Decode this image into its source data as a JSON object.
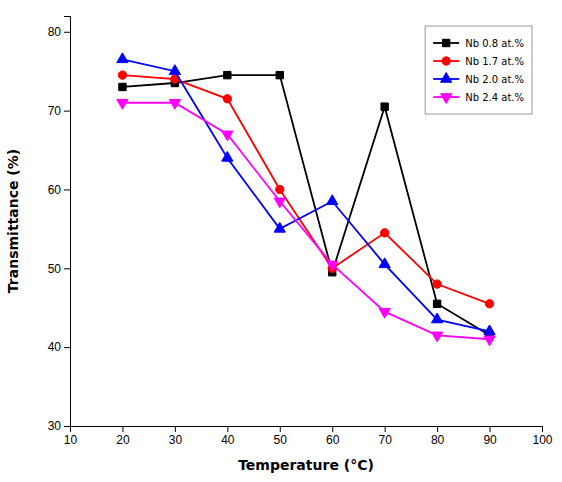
{
  "chart_data": {
    "type": "line",
    "x": [
      20,
      30,
      40,
      50,
      60,
      70,
      80,
      90
    ],
    "series": [
      {
        "name": "Nb 0.8 at.%",
        "color": "#000000",
        "marker": "square",
        "values": [
          73.0,
          73.5,
          74.5,
          74.5,
          49.5,
          70.5,
          45.5,
          41.5
        ]
      },
      {
        "name": "Nb 1.7 at.%",
        "color": "#ff0000",
        "marker": "circle",
        "values": [
          74.5,
          74.0,
          71.5,
          60.0,
          50.0,
          54.5,
          48.0,
          45.5
        ]
      },
      {
        "name": "Nb 2.0 at.%",
        "color": "#0000ff",
        "marker": "triangle-up",
        "values": [
          76.5,
          75.0,
          64.0,
          55.0,
          58.5,
          50.5,
          43.5,
          42.0
        ]
      },
      {
        "name": "Nb 2.4 at.%",
        "color": "#ff00ff",
        "marker": "triangle-down",
        "values": [
          71.0,
          71.0,
          67.0,
          58.5,
          50.5,
          44.5,
          41.5,
          41.0
        ]
      }
    ],
    "xlabel": "Temperature (°C)",
    "ylabel": "Transmittance (%)",
    "xlim": [
      10,
      100
    ],
    "ylim": [
      30,
      82
    ],
    "xticks": [
      10,
      20,
      30,
      40,
      50,
      60,
      70,
      80,
      90,
      100
    ],
    "yticks": [
      30,
      40,
      50,
      60,
      70,
      80
    ],
    "legend": "upper right"
  }
}
